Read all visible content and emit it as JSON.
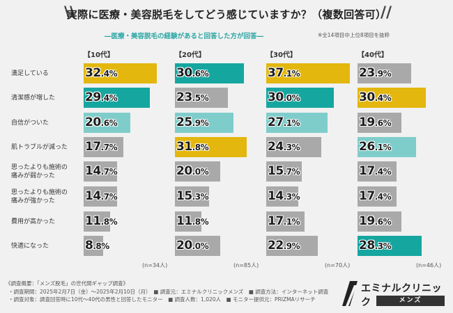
{
  "title": "実際に医療・美容脱毛をしてどう感じていますか？（複数回答可）",
  "subtitle": "―医療・美容脱毛の経験があると回答した方が回答―",
  "note": "※全14項目中上位8項目を抜粋",
  "colors": {
    "gray": "#a9a9a9",
    "yellow": "#e3b70d",
    "teal": "#16a6a0",
    "light_teal": "#7fcdcb"
  },
  "chart_data": {
    "type": "bar",
    "title": "実際に医療・美容脱毛をしてどう感じていますか？（複数回答可）",
    "categories": [
      "満足している",
      "清潔感が増した",
      "自信がついた",
      "肌トラブルが減った",
      "思ったよりも施術の\n痛みが弱かった",
      "思ったよりも施術の\n痛みが強かった",
      "費用が高かった",
      "快適になった"
    ],
    "unit": "%",
    "series": [
      {
        "name": "【10代】",
        "n_label": "(n=34人)",
        "values": [
          32.4,
          29.4,
          20.6,
          17.7,
          14.7,
          14.7,
          11.8,
          8.8
        ],
        "colors": [
          "yellow",
          "teal",
          "light_teal",
          "gray",
          "gray",
          "gray",
          "gray",
          "gray"
        ]
      },
      {
        "name": "【20代】",
        "n_label": "(n=85人)",
        "values": [
          30.6,
          23.5,
          25.9,
          31.8,
          20.0,
          15.3,
          11.8,
          20.0
        ],
        "colors": [
          "teal",
          "gray",
          "light_teal",
          "yellow",
          "gray",
          "gray",
          "gray",
          "gray"
        ]
      },
      {
        "name": "【30代】",
        "n_label": "(n=70人)",
        "values": [
          37.1,
          30.0,
          27.1,
          24.3,
          15.7,
          14.3,
          17.1,
          22.9
        ],
        "colors": [
          "yellow",
          "teal",
          "light_teal",
          "gray",
          "gray",
          "gray",
          "gray",
          "gray"
        ]
      },
      {
        "name": "【40代】",
        "n_label": "(n=46人)",
        "values": [
          23.9,
          30.4,
          19.6,
          26.1,
          17.4,
          17.4,
          19.6,
          28.3
        ],
        "colors": [
          "gray",
          "yellow",
          "gray",
          "light_teal",
          "gray",
          "gray",
          "gray",
          "teal"
        ]
      }
    ],
    "xlim": [
      0,
      37.1
    ]
  },
  "footer": {
    "line1": "《調査概要：「メンズ脱毛」の世代間ギャップ調査》",
    "line2": "・調査期間：2025年2月7日（金）～2025年2月10日（月）　■ 調査元：エミナルクリニックメンズ　■ 調査方法：インターネット調査",
    "line3": "・調査対象：調査回答時に10代～40代の男性と回答したモニター　■ 調査人数：1,020人　■ モニター提供元：PRIZMAリサーチ"
  },
  "logo": {
    "name": "エミナルクリニック",
    "sub": "メンズ"
  }
}
